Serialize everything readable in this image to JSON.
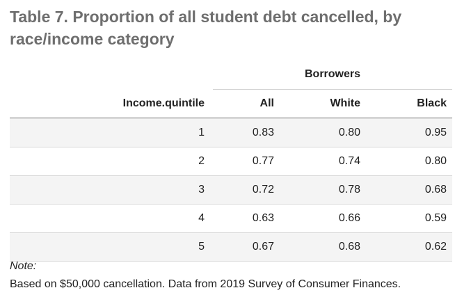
{
  "chart_data": {
    "type": "table",
    "title": "Table 7. Proportion of all student debt cancelled, by race/income category",
    "spanner": "Borrowers",
    "columns": [
      "Income.quintile",
      "All",
      "White",
      "Black"
    ],
    "rows": [
      [
        "1",
        "0.83",
        "0.80",
        "0.95"
      ],
      [
        "2",
        "0.77",
        "0.74",
        "0.80"
      ],
      [
        "3",
        "0.72",
        "0.78",
        "0.68"
      ],
      [
        "4",
        "0.63",
        "0.66",
        "0.59"
      ],
      [
        "5",
        "0.67",
        "0.68",
        "0.62"
      ]
    ],
    "note_label": "Note:",
    "footnote": "Based on $50,000 cancellation. Data from 2019 Survey of Consumer Finances."
  }
}
